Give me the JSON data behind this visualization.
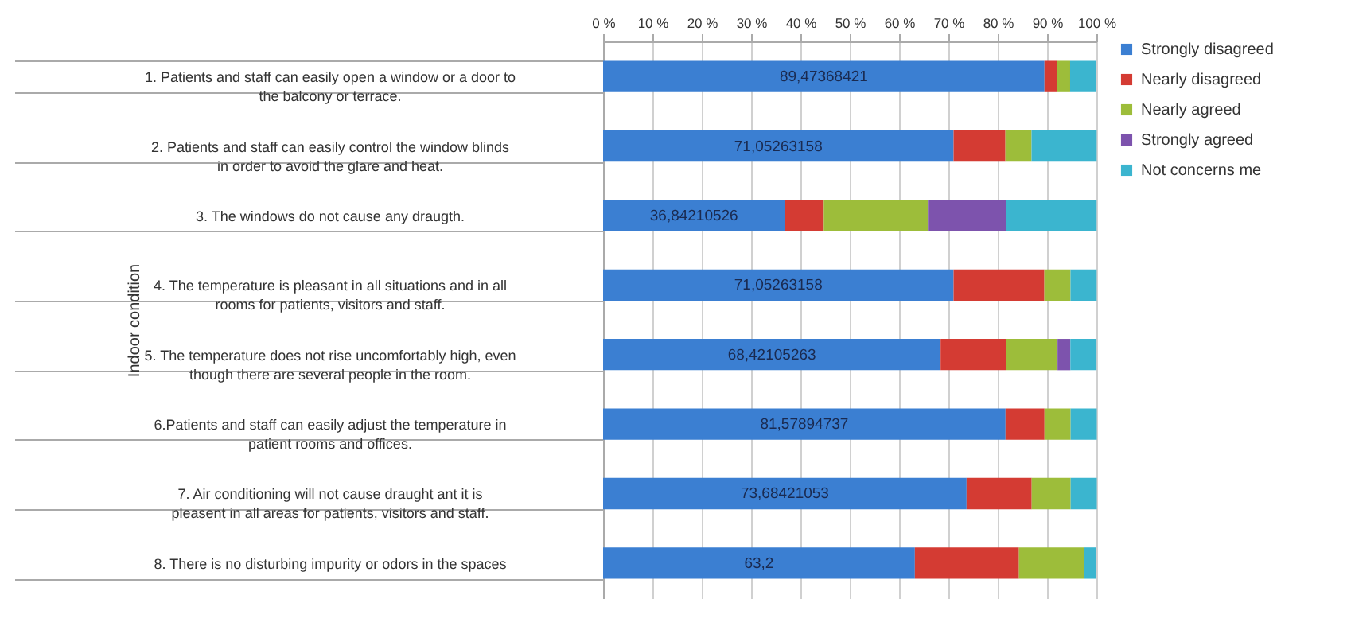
{
  "chart_data": {
    "type": "bar",
    "orientation": "horizontal",
    "stacked": true,
    "ylabel": "Indoor condition",
    "categories": [
      "1. Patients and staff can easily open a window or a door to the balcony or terrace.",
      "2. Patients and staff can easily control the window blinds in order to avoid the glare and heat.",
      "3. The windows do not cause any draugth.",
      "4. The temperature is pleasant in all situations and in all rooms for patients, visitors and staff.",
      "5. The temperature does not rise uncomfortably high, even though there are several people in the room.",
      "6.Patients and staff can easily adjust the temperature in patient rooms and offices.",
      "7. Air conditioning will not cause draught ant it is pleasent in all areas for patients, visitors and staff.",
      "8. There is no disturbing  impurity or odors in the spaces"
    ],
    "series": [
      {
        "name": "Strongly disagreed",
        "color": "#3b7fd2",
        "values": [
          89.47368421,
          71.05263158,
          36.84210526,
          71.05263158,
          68.42105263,
          81.57894737,
          73.68421053,
          63.2
        ],
        "value_labels": [
          "89,47368421",
          "71,05263158",
          "36,84210526",
          "71,05263158",
          "68,42105263",
          "81,57894737",
          "73,68421053",
          "63,2"
        ]
      },
      {
        "name": "Nearly disagreed",
        "color": "#d43b33",
        "values": [
          2.6,
          10.5,
          7.9,
          18.4,
          13.2,
          7.9,
          13.2,
          21.1
        ]
      },
      {
        "name": "Nearly agreed",
        "color": "#9dbd3a",
        "values": [
          2.6,
          5.3,
          21.1,
          5.3,
          10.5,
          5.3,
          7.9,
          13.2
        ]
      },
      {
        "name": "Strongly agreed",
        "color": "#7d53ad",
        "values": [
          null,
          null,
          15.8,
          null,
          2.6,
          null,
          null,
          null
        ]
      },
      {
        "name": "Not concerns me",
        "color": "#3bb5cf",
        "values": [
          5.3,
          13.2,
          18.4,
          5.3,
          5.3,
          5.3,
          5.3,
          2.5
        ]
      }
    ],
    "xlim": [
      0,
      100
    ],
    "xticks": [
      {
        "value": 0,
        "label": "0 %"
      },
      {
        "value": 10,
        "label": "10 %"
      },
      {
        "value": 20,
        "label": "20 %"
      },
      {
        "value": 30,
        "label": "30 %"
      },
      {
        "value": 40,
        "label": "40 %"
      },
      {
        "value": 50,
        "label": "50 %"
      },
      {
        "value": 60,
        "label": "60 %"
      },
      {
        "value": 70,
        "label": "70 %"
      },
      {
        "value": 80,
        "label": "80 %"
      },
      {
        "value": 90,
        "label": "90 %"
      },
      {
        "value": 100,
        "label": "100 %"
      }
    ],
    "grid": "x",
    "legend": "right"
  }
}
